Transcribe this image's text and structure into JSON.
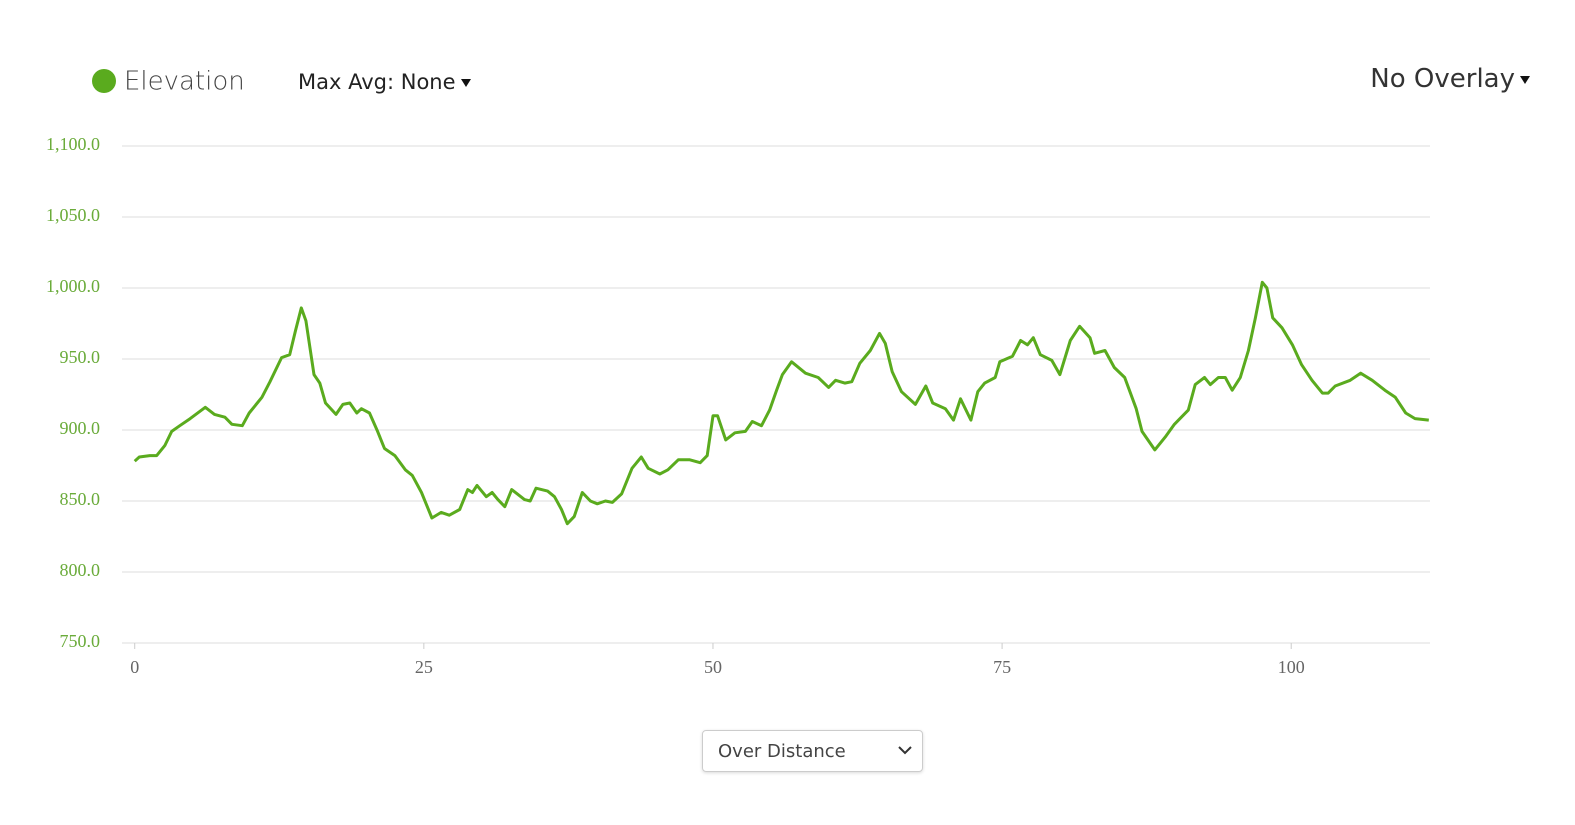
{
  "chart_data": {
    "type": "line",
    "series": [
      {
        "name": "Elevation",
        "color": "#5aab1e",
        "values": [
          878,
          881,
          882,
          882,
          889,
          899,
          903,
          908,
          916,
          911,
          909,
          904,
          903,
          912,
          923,
          934,
          951,
          953,
          970,
          986,
          977,
          939,
          933,
          919,
          911,
          918,
          919,
          912,
          915,
          912,
          899,
          887,
          882,
          872,
          868,
          856,
          838,
          842,
          840,
          844,
          858,
          856,
          861,
          853,
          856,
          851,
          846,
          858,
          851,
          850,
          859,
          857,
          853,
          844,
          834,
          839,
          856,
          850,
          848,
          850,
          849,
          855,
          873,
          881,
          873,
          869,
          872,
          879,
          879,
          877,
          882,
          910,
          910,
          893,
          898,
          899,
          906,
          903,
          914,
          928,
          939,
          948,
          940,
          937,
          930,
          935,
          933,
          934,
          947,
          956,
          968,
          961,
          941,
          927,
          918,
          931,
          919,
          915,
          907,
          922,
          907,
          927,
          933,
          937,
          948,
          952,
          963,
          960,
          965,
          953,
          949,
          939,
          963,
          973,
          965,
          954,
          956,
          944,
          937,
          915,
          899,
          886,
          895,
          904,
          914,
          932,
          937,
          932,
          937,
          937,
          928,
          937,
          956,
          979,
          1004,
          1000,
          979,
          972,
          960,
          946,
          935,
          926,
          926,
          931,
          935,
          940,
          935,
          928,
          923,
          912,
          908,
          907
        ]
      }
    ],
    "x": [
      0,
      0.4,
      1.3,
      1.9,
      2.6,
      3.2,
      3.9,
      4.8,
      6.1,
      6.9,
      7.8,
      8.4,
      9.3,
      9.9,
      11.0,
      11.7,
      12.7,
      13.4,
      13.9,
      14.4,
      14.8,
      15.5,
      16.0,
      16.5,
      17.4,
      18.0,
      18.6,
      19.2,
      19.6,
      20.3,
      21.0,
      21.6,
      22.5,
      23.4,
      24.0,
      24.8,
      25.7,
      26.5,
      27.2,
      28.1,
      28.8,
      29.2,
      29.6,
      30.4,
      30.9,
      31.4,
      32.0,
      32.6,
      33.7,
      34.2,
      34.7,
      35.7,
      36.3,
      36.9,
      37.4,
      38.0,
      38.7,
      39.4,
      40.0,
      40.7,
      41.3,
      42.1,
      43.0,
      43.8,
      44.4,
      45.4,
      46.1,
      47.0,
      48.0,
      48.9,
      49.5,
      50.0,
      50.4,
      51.1,
      51.9,
      52.8,
      53.4,
      54.2,
      54.9,
      55.5,
      56.0,
      56.8,
      58.0,
      59.1,
      60.0,
      60.6,
      61.4,
      62.0,
      62.7,
      63.6,
      64.4,
      64.9,
      65.5,
      66.3,
      67.5,
      68.4,
      69.0,
      70.1,
      70.8,
      71.4,
      72.3,
      72.9,
      73.5,
      74.4,
      74.8,
      75.9,
      76.6,
      77.2,
      77.7,
      78.3,
      79.3,
      80.0,
      80.9,
      81.7,
      82.6,
      83.0,
      83.9,
      84.7,
      85.6,
      86.6,
      87.1,
      88.2,
      89.1,
      89.9,
      91.1,
      91.7,
      92.5,
      93.0,
      93.7,
      94.3,
      94.9,
      95.6,
      96.3,
      96.9,
      97.5,
      97.9,
      98.4,
      99.2,
      100.1,
      100.9,
      101.8,
      102.7,
      103.2,
      103.8,
      105.1,
      106.0,
      107.0,
      108.1,
      109.0,
      109.9,
      110.7,
      111.9
    ],
    "xlim": [
      -1.1,
      112
    ],
    "xticks": [
      0,
      25,
      50,
      75,
      100
    ],
    "ylim": [
      750,
      1100
    ],
    "yticks": [
      {
        "value": 750,
        "label": "750.0"
      },
      {
        "value": 800,
        "label": "800.0"
      },
      {
        "value": 850,
        "label": "850.0"
      },
      {
        "value": 900,
        "label": "900.0"
      },
      {
        "value": 950,
        "label": "950.0"
      },
      {
        "value": 1000,
        "label": "1,000.0"
      },
      {
        "value": 1050,
        "label": "1,050.0"
      },
      {
        "value": 1100,
        "label": "1,100.0"
      }
    ],
    "grid": true,
    "tick_label_color": "#6aab3a"
  },
  "controls": {
    "max_avg": "Max Avg: None",
    "overlay": "No Overlay",
    "mode": "Over Distance"
  }
}
